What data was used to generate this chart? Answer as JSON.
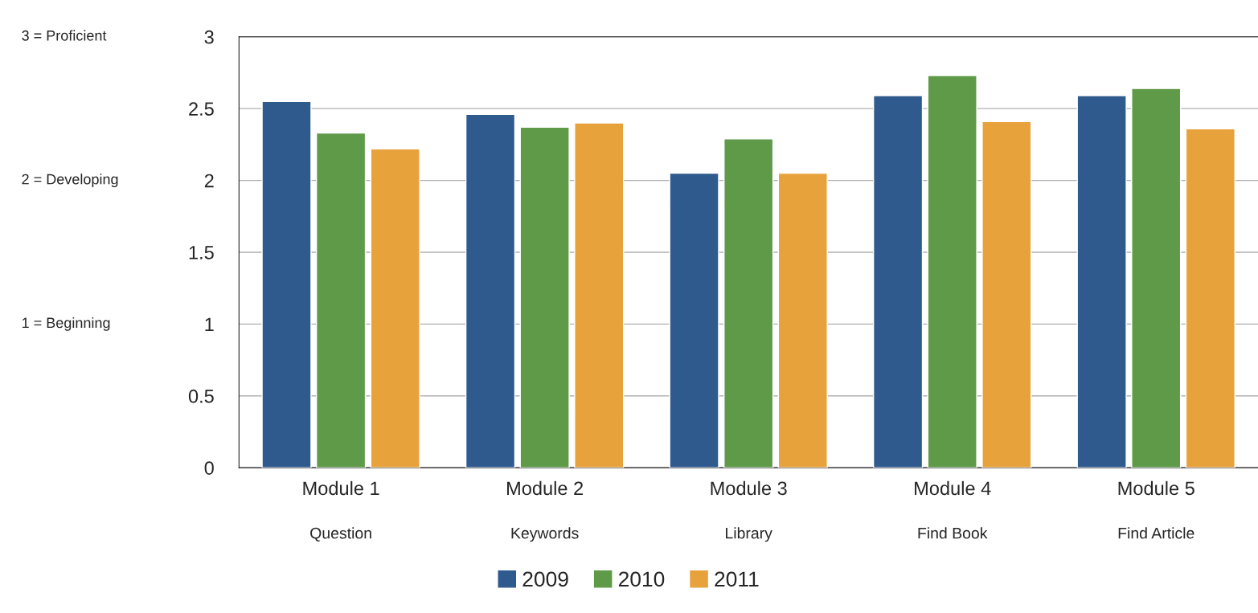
{
  "chart_data": {
    "type": "bar",
    "categories": [
      "Module 1\nQuestion",
      "Module 2\nKeywords",
      "Module 3\nLibrary",
      "Module 4\nFind Book",
      "Module 5\nFind Article"
    ],
    "series": [
      {
        "name": "2009",
        "color": "#2f5a8e",
        "values": [
          2.55,
          2.46,
          2.05,
          2.59,
          2.59
        ]
      },
      {
        "name": "2010",
        "color": "#5e9a47",
        "values": [
          2.33,
          2.37,
          2.29,
          2.73,
          2.64
        ]
      },
      {
        "name": "2011",
        "color": "#e8a23c",
        "values": [
          2.22,
          2.4,
          2.05,
          2.41,
          2.36
        ]
      }
    ],
    "ylim": [
      0,
      3
    ],
    "yticks": [
      0,
      0.5,
      1,
      1.5,
      2,
      2.5,
      3
    ],
    "grid": "y",
    "legend": "bottom",
    "annotations": [
      "3 = Proficient",
      "2 = Developing",
      "1 = Beginning"
    ]
  }
}
